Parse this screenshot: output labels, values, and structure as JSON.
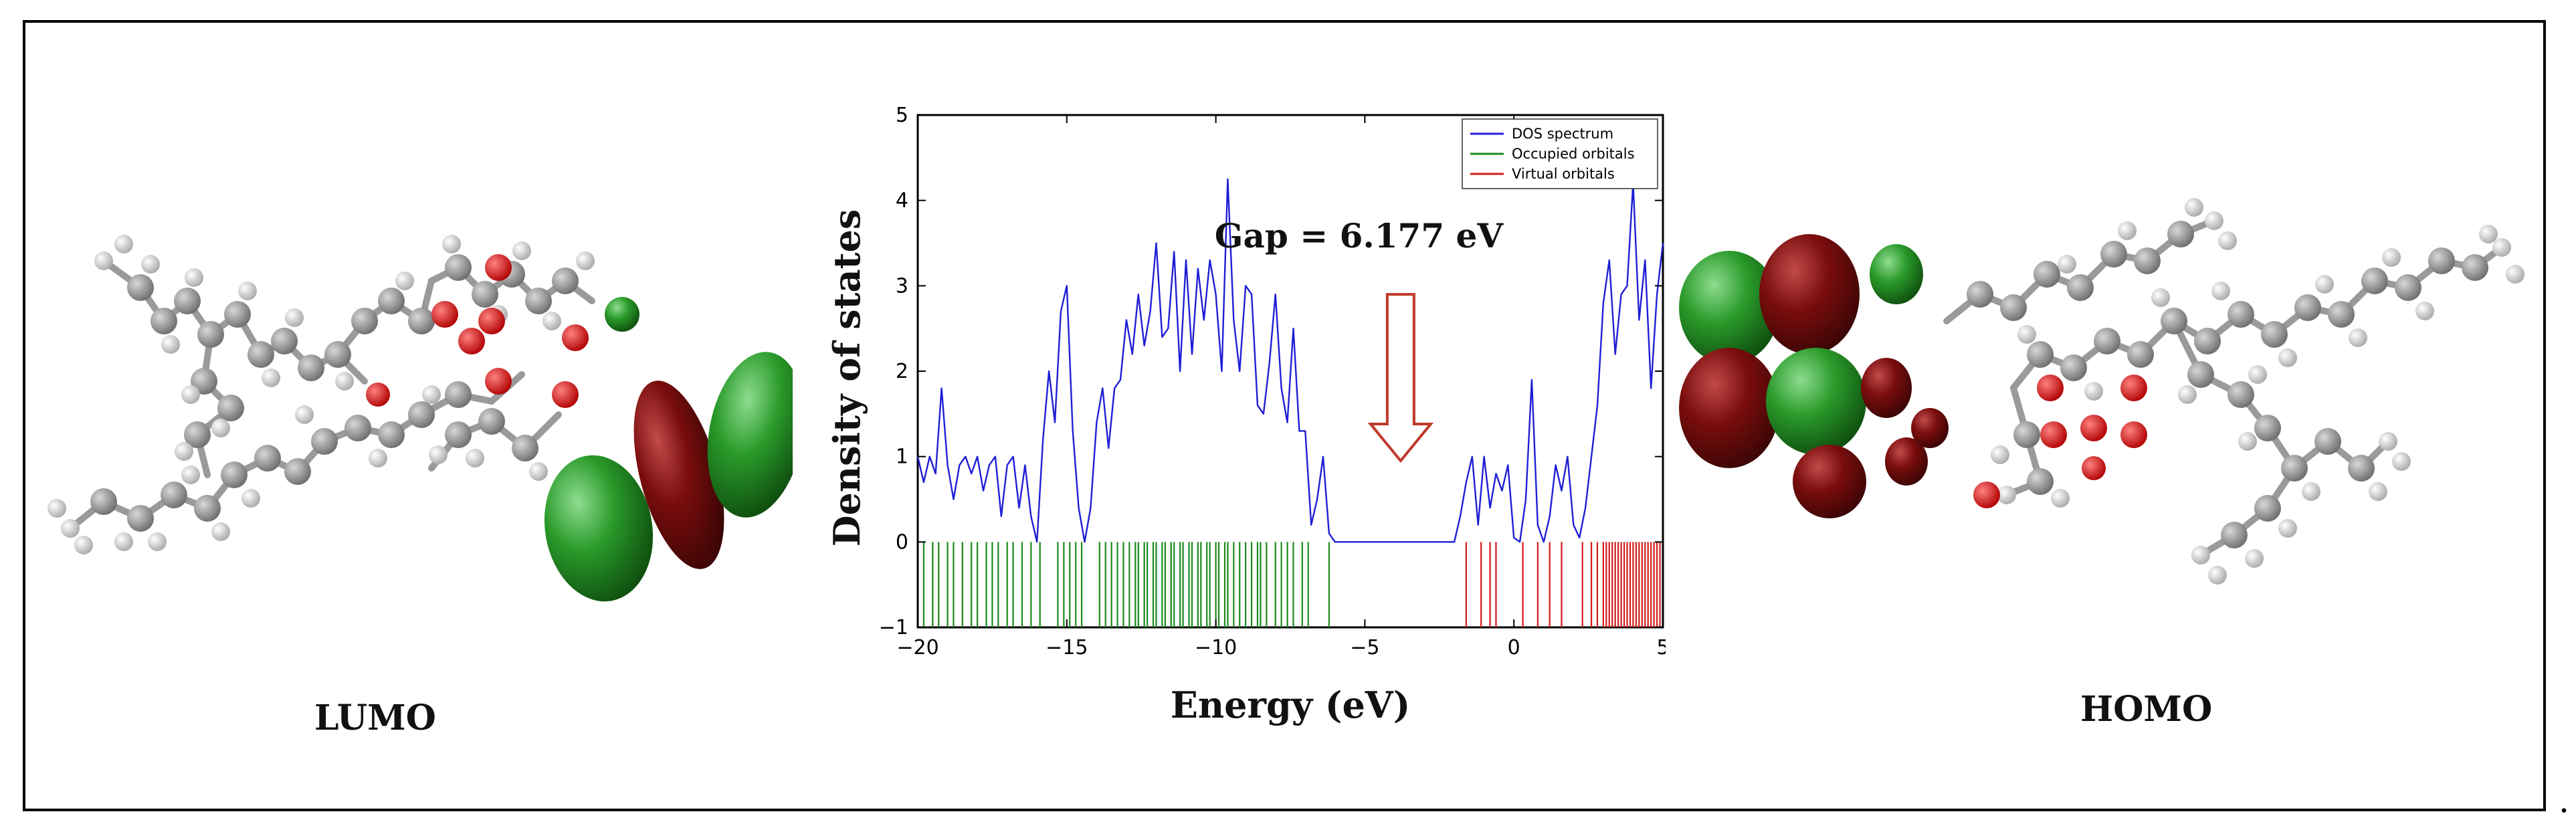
{
  "figure": {
    "lumo_label": "LUMO",
    "homo_label": "HOMO",
    "trailing_mark": "."
  },
  "colors": {
    "dos_line": "#1f1fd6",
    "occupied": "#1a8a1a",
    "virtual": "#d21a1a",
    "arrow": "#c0392b",
    "orbital_green": "#1e8a1e",
    "orbital_red": "#7a0d0d",
    "carbon": "#8a8a8a",
    "hydrogen": "#e8e8e8",
    "oxygen": "#e01010"
  },
  "chart_data": {
    "type": "line",
    "title": "",
    "xlabel": "Energy (eV)",
    "ylabel": "Density of states",
    "xlim": [
      -20,
      5
    ],
    "ylim": [
      -1,
      5
    ],
    "xticks": [
      -20,
      -15,
      -10,
      -5,
      0,
      5
    ],
    "xtick_labels": [
      "−20",
      "−15",
      "−10",
      "−5",
      "0",
      "5"
    ],
    "yticks": [
      -1,
      0,
      1,
      2,
      3,
      4,
      5
    ],
    "ytick_labels": [
      "−1",
      "0",
      "1",
      "2",
      "3",
      "4",
      "5"
    ],
    "annotation": {
      "text": "Gap = 6.177 eV",
      "x": -5.2,
      "y": 3.45
    },
    "gap_arrow": {
      "x": -3.8,
      "y_from": 2.9,
      "y_to": 0.95
    },
    "legend": {
      "position": "top-right",
      "entries": [
        "DOS spectrum",
        "Occupied orbitals",
        "Virtual orbitals"
      ]
    },
    "series": [
      {
        "name": "DOS spectrum",
        "x": [
          -20.0,
          -19.8,
          -19.6,
          -19.4,
          -19.2,
          -19.0,
          -18.8,
          -18.6,
          -18.4,
          -18.2,
          -18.0,
          -17.8,
          -17.6,
          -17.4,
          -17.2,
          -17.0,
          -16.8,
          -16.6,
          -16.4,
          -16.2,
          -16.0,
          -15.8,
          -15.6,
          -15.4,
          -15.2,
          -15.0,
          -14.8,
          -14.6,
          -14.4,
          -14.2,
          -14.0,
          -13.8,
          -13.6,
          -13.4,
          -13.2,
          -13.0,
          -12.8,
          -12.6,
          -12.4,
          -12.2,
          -12.0,
          -11.8,
          -11.6,
          -11.4,
          -11.2,
          -11.0,
          -10.8,
          -10.6,
          -10.4,
          -10.2,
          -10.0,
          -9.8,
          -9.6,
          -9.4,
          -9.2,
          -9.0,
          -8.8,
          -8.6,
          -8.4,
          -8.2,
          -8.0,
          -7.8,
          -7.6,
          -7.4,
          -7.2,
          -7.0,
          -6.8,
          -6.6,
          -6.4,
          -6.2,
          -6.0,
          -5.8,
          -5.0,
          -4.0,
          -3.0,
          -2.0,
          -1.8,
          -1.6,
          -1.4,
          -1.2,
          -1.0,
          -0.8,
          -0.6,
          -0.4,
          -0.2,
          0.0,
          0.2,
          0.4,
          0.6,
          0.8,
          1.0,
          1.2,
          1.4,
          1.6,
          1.8,
          2.0,
          2.2,
          2.4,
          2.6,
          2.8,
          3.0,
          3.2,
          3.4,
          3.6,
          3.8,
          4.0,
          4.2,
          4.4,
          4.6,
          4.8,
          5.0
        ],
        "values": [
          1.0,
          0.7,
          1.0,
          0.8,
          1.8,
          0.9,
          0.5,
          0.9,
          1.0,
          0.8,
          1.0,
          0.6,
          0.9,
          1.0,
          0.3,
          0.9,
          1.0,
          0.4,
          0.9,
          0.3,
          0.0,
          1.2,
          2.0,
          1.4,
          2.7,
          3.0,
          1.3,
          0.4,
          0.0,
          0.4,
          1.4,
          1.8,
          1.1,
          1.8,
          1.9,
          2.6,
          2.2,
          2.9,
          2.3,
          2.7,
          3.5,
          2.4,
          2.5,
          3.4,
          2.0,
          3.3,
          2.2,
          3.2,
          2.6,
          3.3,
          2.9,
          2.0,
          4.25,
          2.6,
          2.0,
          3.0,
          2.9,
          1.6,
          1.5,
          2.1,
          2.9,
          1.8,
          1.4,
          2.5,
          1.3,
          1.3,
          0.2,
          0.5,
          1.0,
          0.1,
          0.0,
          0.0,
          0.0,
          0.0,
          0.0,
          0.0,
          0.3,
          0.7,
          1.0,
          0.2,
          1.0,
          0.4,
          0.8,
          0.6,
          0.9,
          0.05,
          0.0,
          0.5,
          1.9,
          0.2,
          0.0,
          0.3,
          0.9,
          0.6,
          1.0,
          0.2,
          0.05,
          0.4,
          1.0,
          1.6,
          2.8,
          3.3,
          2.2,
          2.9,
          3.0,
          4.2,
          2.6,
          3.3,
          1.8,
          2.9,
          3.5
        ]
      },
      {
        "name": "Occupied orbitals",
        "energies": [
          -19.8,
          -19.5,
          -19.3,
          -19.0,
          -18.8,
          -18.5,
          -18.2,
          -18.0,
          -17.7,
          -17.5,
          -17.3,
          -17.0,
          -16.8,
          -16.5,
          -16.2,
          -15.9,
          -15.3,
          -15.1,
          -14.9,
          -14.7,
          -14.5,
          -13.9,
          -13.7,
          -13.5,
          -13.3,
          -13.1,
          -12.9,
          -12.7,
          -12.6,
          -12.4,
          -12.3,
          -12.1,
          -12.0,
          -11.8,
          -11.7,
          -11.5,
          -11.4,
          -11.2,
          -11.1,
          -10.9,
          -10.8,
          -10.6,
          -10.5,
          -10.3,
          -10.2,
          -10.0,
          -9.9,
          -9.7,
          -9.6,
          -9.4,
          -9.2,
          -9.0,
          -8.8,
          -8.6,
          -8.5,
          -8.3,
          -8.0,
          -7.8,
          -7.6,
          -7.4,
          -7.1,
          -6.9,
          -6.2
        ]
      },
      {
        "name": "Virtual orbitals",
        "energies": [
          -1.6,
          -1.1,
          -0.8,
          -0.6,
          0.3,
          0.8,
          1.2,
          1.6,
          2.3,
          2.6,
          2.8,
          3.0,
          3.1,
          3.2,
          3.3,
          3.4,
          3.5,
          3.6,
          3.7,
          3.8,
          3.9,
          4.0,
          4.1,
          4.2,
          4.3,
          4.4,
          4.5,
          4.6,
          4.7,
          4.8,
          4.9
        ]
      }
    ]
  }
}
